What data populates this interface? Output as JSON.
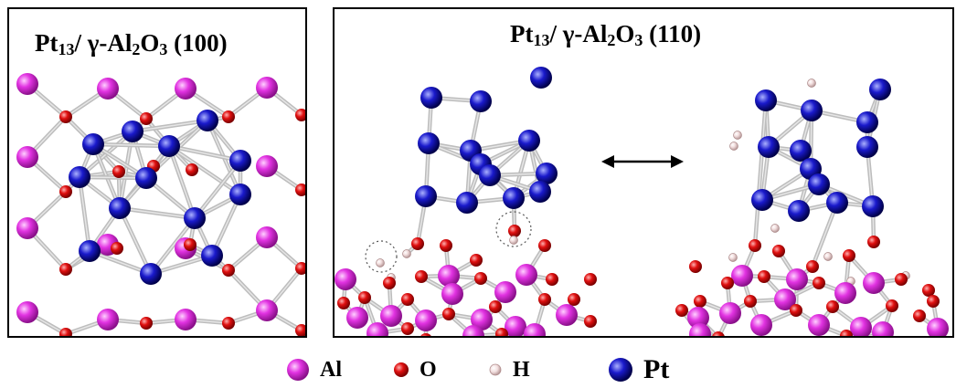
{
  "panels": {
    "left": {
      "title_pre": "Pt",
      "title_sub1": "13",
      "title_mid": "/ γ-Al",
      "title_sub2": "2",
      "title_o": "O",
      "title_sub3": "3",
      "title_post": " (100)"
    },
    "right": {
      "title_pre": "Pt",
      "title_sub1": "13",
      "title_mid": "/ γ-Al",
      "title_sub2": "2",
      "title_o": "O",
      "title_sub3": "3",
      "title_post": " (110)"
    }
  },
  "legend": [
    {
      "label": "Al",
      "color": "#e233e2"
    },
    {
      "label": "O",
      "color": "#e01010"
    },
    {
      "label": "H",
      "color": "#f2dede"
    },
    {
      "label": "Pt",
      "color": "#1a1acc"
    }
  ],
  "colors": {
    "Al": "#e233e2",
    "O": "#e01010",
    "H": "#f2dede",
    "Pt": "#1a1acc",
    "bond": "#c8c8c8",
    "arrow": "#000000"
  }
}
